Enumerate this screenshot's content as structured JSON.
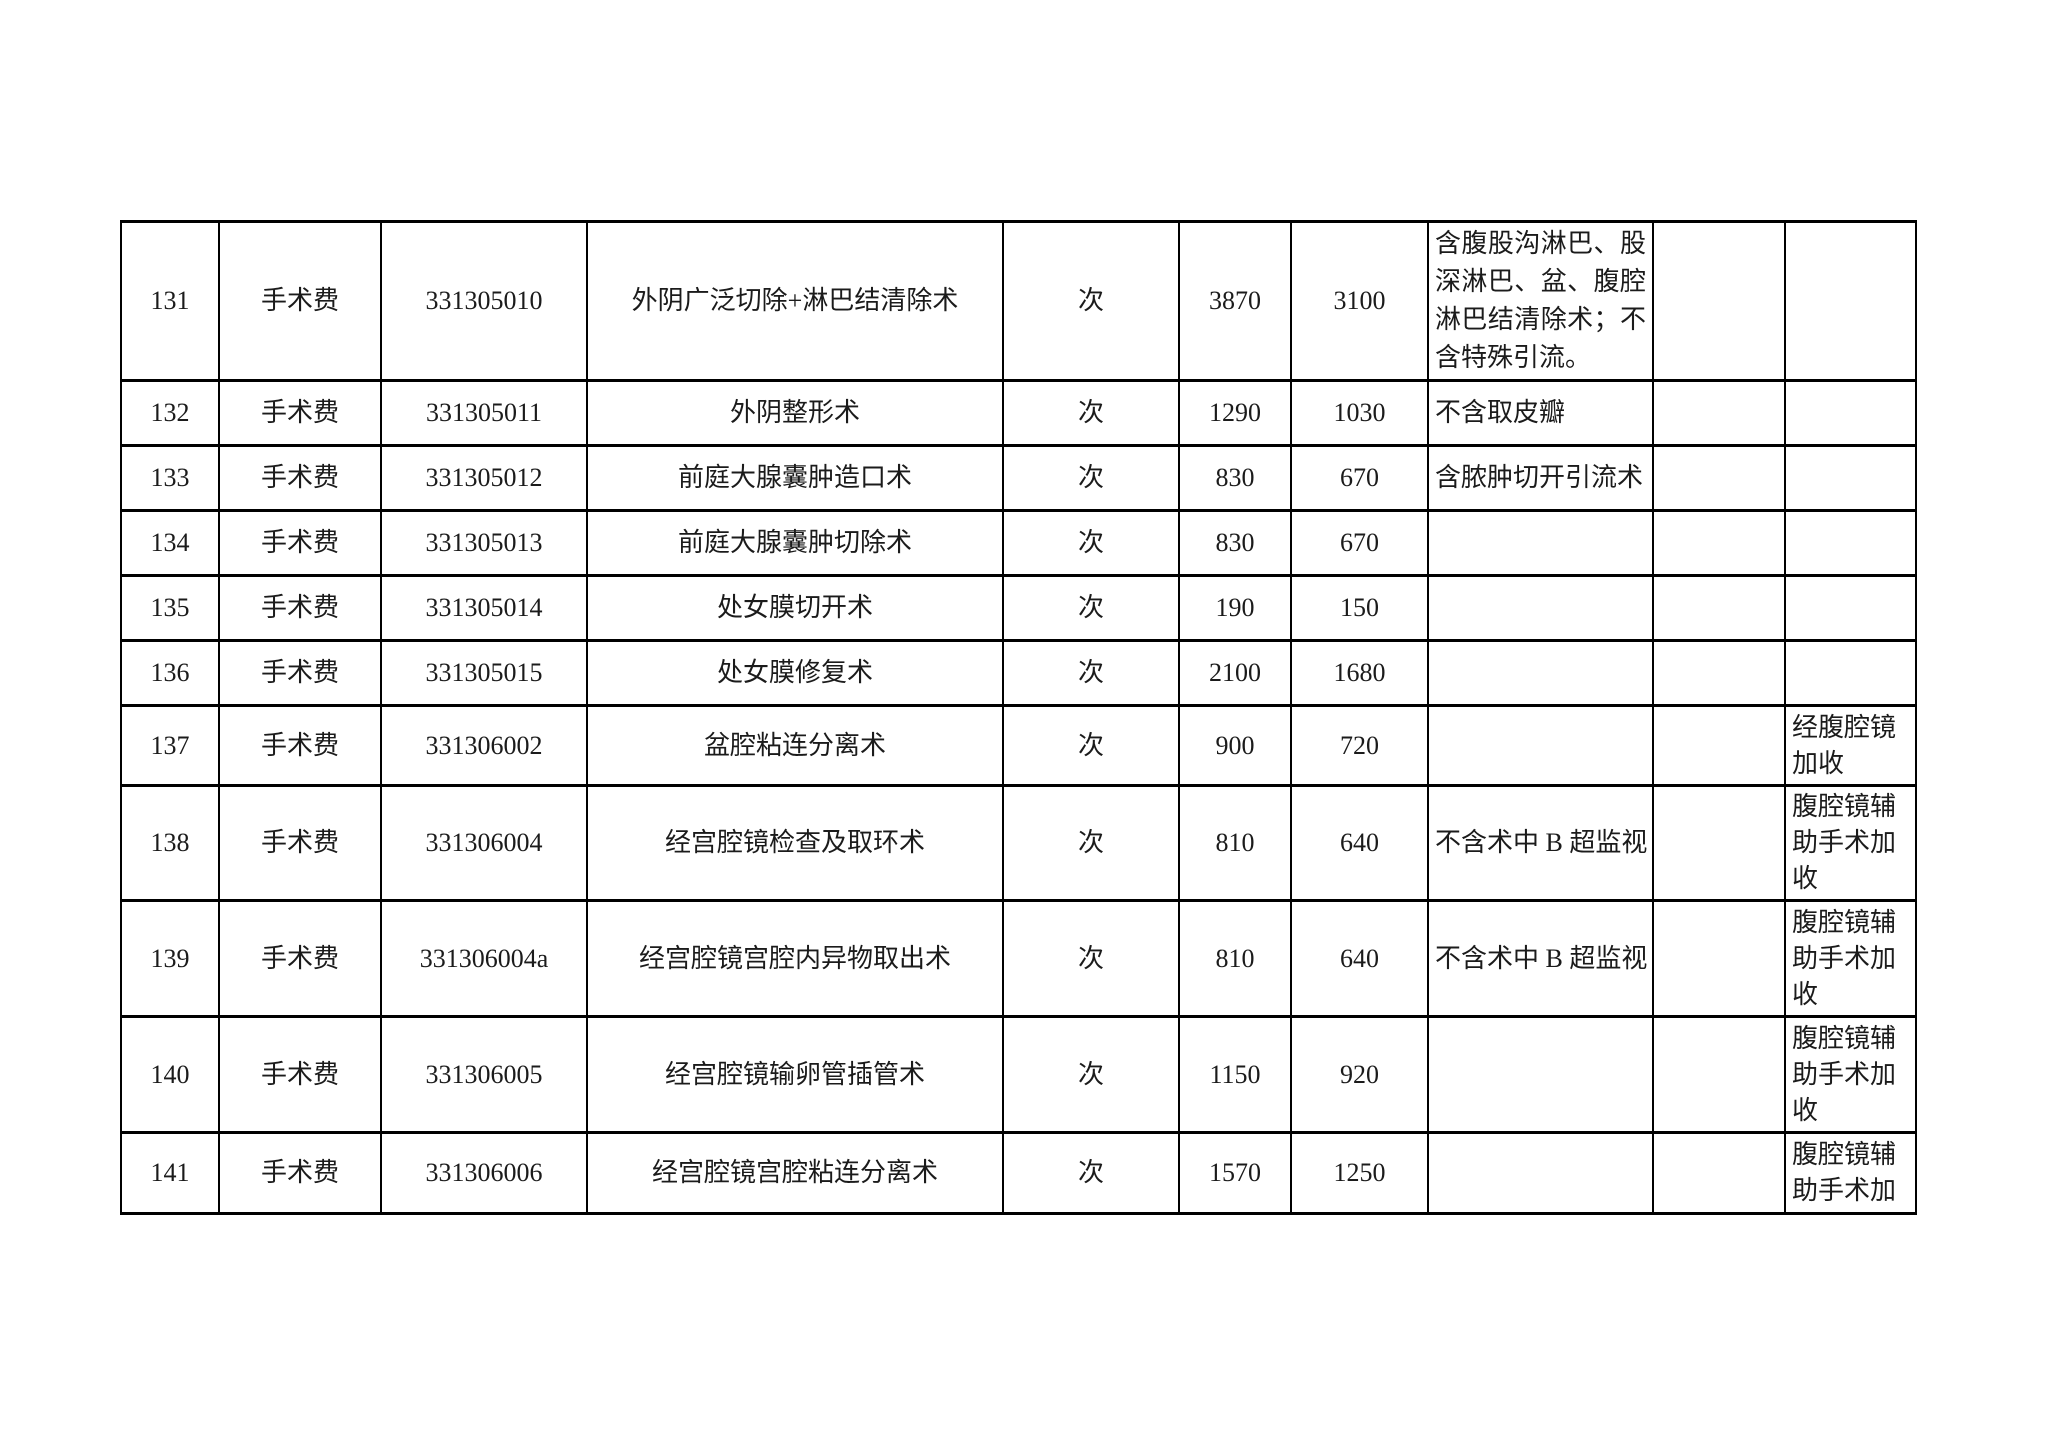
{
  "page": {
    "background_color": "#ffffff",
    "text_color": "#1b1b1b",
    "border_color": "#000000",
    "description": "医疗服务价格表片段（手术费，第131-141项）"
  },
  "table": {
    "visible_row_range": "131-141",
    "rows": [
      {
        "no": "131",
        "category": "手术费",
        "code": "331305010",
        "name": "外阴广泛切除+淋巴结清除术",
        "unit": "次",
        "price_standard": "3870",
        "price_reduced": "3100",
        "note": "含腹股沟淋巴、股深淋巴、盆、腹腔淋巴结清除术；不含特殊引流。",
        "blank": "",
        "addon": ""
      },
      {
        "no": "132",
        "category": "手术费",
        "code": "331305011",
        "name": "外阴整形术",
        "unit": "次",
        "price_standard": "1290",
        "price_reduced": "1030",
        "note": "不含取皮瓣",
        "blank": "",
        "addon": ""
      },
      {
        "no": "133",
        "category": "手术费",
        "code": "331305012",
        "name": "前庭大腺囊肿造口术",
        "unit": "次",
        "price_standard": "830",
        "price_reduced": "670",
        "note": "含脓肿切开引流术",
        "blank": "",
        "addon": ""
      },
      {
        "no": "134",
        "category": "手术费",
        "code": "331305013",
        "name": "前庭大腺囊肿切除术",
        "unit": "次",
        "price_standard": "830",
        "price_reduced": "670",
        "note": "",
        "blank": "",
        "addon": ""
      },
      {
        "no": "135",
        "category": "手术费",
        "code": "331305014",
        "name": "处女膜切开术",
        "unit": "次",
        "price_standard": "190",
        "price_reduced": "150",
        "note": "",
        "blank": "",
        "addon": ""
      },
      {
        "no": "136",
        "category": "手术费",
        "code": "331305015",
        "name": "处女膜修复术",
        "unit": "次",
        "price_standard": "2100",
        "price_reduced": "1680",
        "note": "",
        "blank": "",
        "addon": ""
      },
      {
        "no": "137",
        "category": "手术费",
        "code": "331306002",
        "name": "盆腔粘连分离术",
        "unit": "次",
        "price_standard": "900",
        "price_reduced": "720",
        "note": "",
        "blank": "",
        "addon": "经腹腔镜加收"
      },
      {
        "no": "138",
        "category": "手术费",
        "code": "331306004",
        "name": "经宫腔镜检查及取环术",
        "unit": "次",
        "price_standard": "810",
        "price_reduced": "640",
        "note": "不含术中 B 超监视",
        "blank": "",
        "addon": "腹腔镜辅助手术加收"
      },
      {
        "no": "139",
        "category": "手术费",
        "code": "331306004a",
        "name": "经宫腔镜宫腔内异物取出术",
        "unit": "次",
        "price_standard": "810",
        "price_reduced": "640",
        "note": "不含术中 B 超监视",
        "blank": "",
        "addon": "腹腔镜辅助手术加收"
      },
      {
        "no": "140",
        "category": "手术费",
        "code": "331306005",
        "name": "经宫腔镜输卵管插管术",
        "unit": "次",
        "price_standard": "1150",
        "price_reduced": "920",
        "note": "",
        "blank": "",
        "addon": "腹腔镜辅助手术加收"
      },
      {
        "no": "141",
        "category": "手术费",
        "code": "331306006",
        "name": "经宫腔镜宫腔粘连分离术",
        "unit": "次",
        "price_standard": "1570",
        "price_reduced": "1250",
        "note": "",
        "blank": "",
        "addon": "腹腔镜辅助手术加"
      }
    ]
  }
}
